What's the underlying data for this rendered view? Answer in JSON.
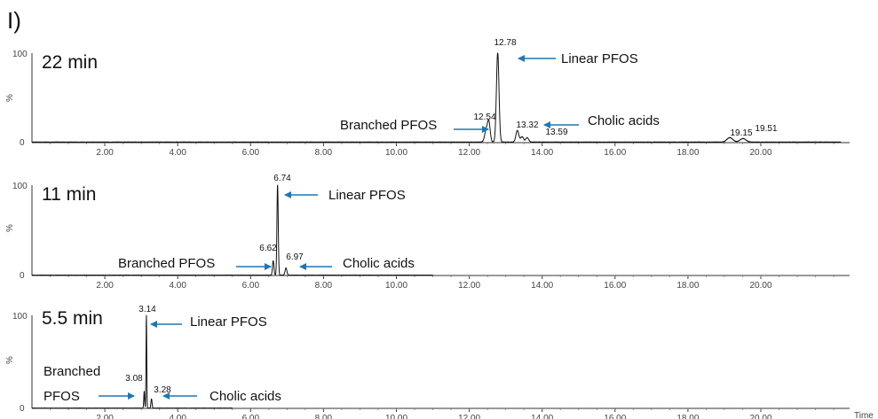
{
  "figure": {
    "panel_label": "I)",
    "x_axis_label": "Time",
    "accent_color": "#1f77b4"
  },
  "chart_data": [
    {
      "type": "line",
      "run_label": "22 min",
      "ylabel": "%",
      "yticks": [
        "0",
        "100"
      ],
      "xlim": [
        0,
        22.2
      ],
      "ylim": [
        0,
        100
      ],
      "xticks": [
        "2.00",
        "4.00",
        "6.00",
        "8.00",
        "10.00",
        "12.00",
        "14.00",
        "16.00",
        "18.00",
        "20.00"
      ],
      "baseline": 0.6,
      "peaks": [
        {
          "rt": 12.47,
          "h": 14,
          "w": 0.045
        },
        {
          "rt": 12.54,
          "h": 20,
          "w": 0.035
        },
        {
          "rt": 12.78,
          "h": 100,
          "w": 0.035
        },
        {
          "rt": 13.32,
          "h": 13,
          "w": 0.04
        },
        {
          "rt": 13.45,
          "h": 6,
          "w": 0.04
        },
        {
          "rt": 13.59,
          "h": 5,
          "w": 0.04
        },
        {
          "rt": 19.15,
          "h": 5,
          "w": 0.08
        },
        {
          "rt": 19.51,
          "h": 4,
          "w": 0.08
        }
      ],
      "peak_labels": [
        "12.54",
        "12.78",
        "13.32",
        "13.59",
        "19.15",
        "19.51"
      ],
      "annotations": [
        {
          "text": "Linear PFOS",
          "target": "12.78"
        },
        {
          "text": "Branched PFOS",
          "target": "12.54"
        },
        {
          "text": "Cholic acids",
          "target": "13.32"
        }
      ]
    },
    {
      "type": "line",
      "run_label": "11 min",
      "ylabel": "%",
      "yticks": [
        "0",
        "100"
      ],
      "xlim": [
        0,
        11.0
      ],
      "ylim": [
        0,
        100
      ],
      "xticks": [
        "2.00",
        "4.00",
        "6.00",
        "8.00",
        "10.00",
        "12.00",
        "14.00",
        "16.00",
        "18.00",
        "20.00"
      ],
      "baseline": 0.4,
      "peaks": [
        {
          "rt": 6.62,
          "h": 16,
          "w": 0.02
        },
        {
          "rt": 6.74,
          "h": 100,
          "w": 0.018
        },
        {
          "rt": 6.97,
          "h": 8,
          "w": 0.025
        }
      ],
      "peak_labels": [
        "6.74",
        "6.62",
        "6.97"
      ],
      "annotations": [
        {
          "text": "Linear PFOS",
          "target": "6.74"
        },
        {
          "text": "Branched PFOS",
          "target": "6.62"
        },
        {
          "text": "Cholic acids",
          "target": "6.97"
        }
      ]
    },
    {
      "type": "line",
      "run_label": "5.5 min",
      "ylabel": "%",
      "yticks": [
        "0",
        "100"
      ],
      "xlim": [
        0,
        5.5
      ],
      "ylim": [
        0,
        100
      ],
      "xticks": [
        "2.00",
        "4.00",
        "6.00",
        "8.00",
        "10.00",
        "12.00",
        "14.00",
        "16.00",
        "18.00",
        "20.00"
      ],
      "baseline": 0.3,
      "peaks": [
        {
          "rt": 3.08,
          "h": 18,
          "w": 0.012
        },
        {
          "rt": 3.14,
          "h": 100,
          "w": 0.01
        },
        {
          "rt": 3.28,
          "h": 10,
          "w": 0.015
        }
      ],
      "peak_labels": [
        "3.14",
        "3.08",
        "3.28"
      ],
      "annotations": [
        {
          "text": "Linear PFOS",
          "target": "3.14"
        },
        {
          "text": "Branched",
          "target": "3.08"
        },
        {
          "text": "PFOS",
          "target": "3.08"
        },
        {
          "text": "Cholic acids",
          "target": "3.28"
        }
      ]
    }
  ]
}
